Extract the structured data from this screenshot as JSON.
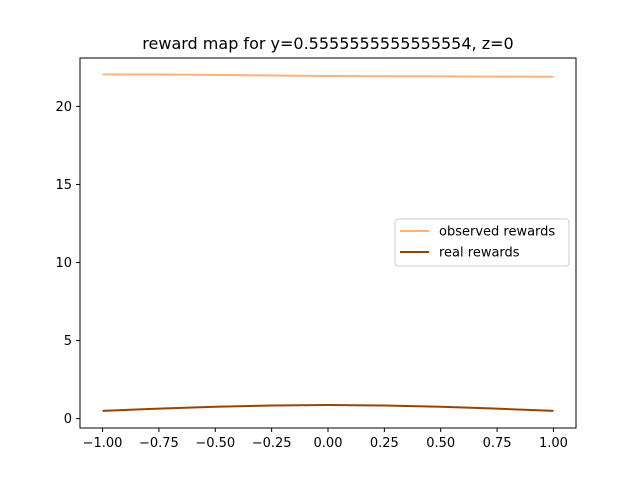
{
  "chart_data": {
    "type": "line",
    "title": "reward map for y=0.5555555555555554, z=0",
    "xlabel": "",
    "ylabel": "",
    "xlim": [
      -1.1,
      1.1
    ],
    "ylim": [
      -0.6,
      23.1
    ],
    "xticks": [
      -1.0,
      -0.75,
      -0.5,
      -0.25,
      0.0,
      0.25,
      0.5,
      0.75,
      1.0
    ],
    "xtick_labels": [
      "−1.00",
      "−0.75",
      "−0.50",
      "−0.25",
      "0.00",
      "0.25",
      "0.50",
      "0.75",
      "1.00"
    ],
    "yticks": [
      0,
      5,
      10,
      15,
      20
    ],
    "ytick_labels": [
      "0",
      "5",
      "10",
      "15",
      "20"
    ],
    "grid": false,
    "legend_position": "center-right",
    "series": [
      {
        "name": "observed rewards",
        "color": "#ffb27a",
        "x": [
          -1.0,
          -0.75,
          -0.5,
          -0.25,
          0.0,
          0.25,
          0.5,
          0.75,
          1.0
        ],
        "values": [
          22.05,
          22.04,
          22.02,
          21.98,
          21.95,
          21.93,
          21.92,
          21.91,
          21.9
        ]
      },
      {
        "name": "real rewards",
        "color": "#9a4300",
        "x": [
          -1.0,
          -0.75,
          -0.5,
          -0.25,
          0.0,
          0.25,
          0.5,
          0.75,
          1.0
        ],
        "values": [
          0.5,
          0.64,
          0.76,
          0.84,
          0.87,
          0.84,
          0.76,
          0.64,
          0.5
        ]
      }
    ]
  }
}
